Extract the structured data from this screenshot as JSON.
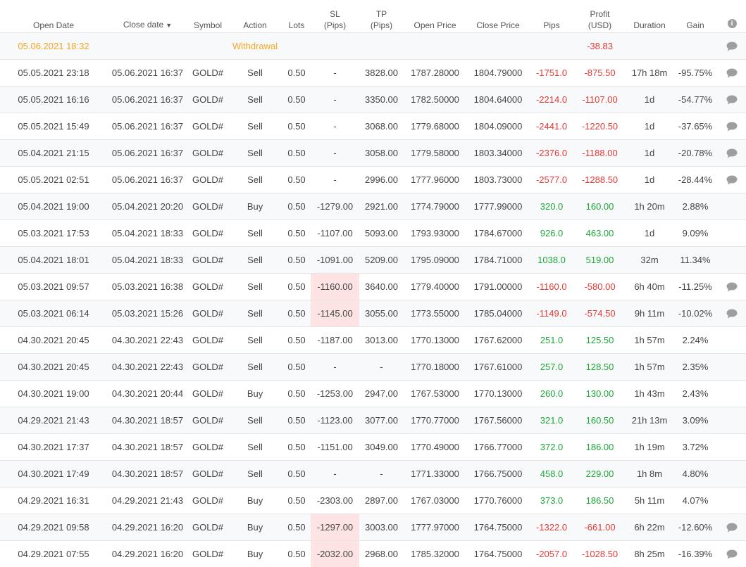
{
  "header": {
    "open_date": "Open Date",
    "close_date": "Close date",
    "sort_indicator": "▼",
    "symbol": "Symbol",
    "action": "Action",
    "lots": "Lots",
    "sl_1": "SL",
    "sl_2": "(Pips)",
    "tp_1": "TP",
    "tp_2": "(Pips)",
    "open_price": "Open Price",
    "close_price": "Close Price",
    "pips": "Pips",
    "profit_1": "Profit",
    "profit_2": "(USD)",
    "duration": "Duration",
    "gain": "Gain",
    "info_glyph": "i"
  },
  "colors": {
    "negative": "#e53935",
    "positive": "#1fa63a",
    "withdrawal": "#f5a623",
    "sl_highlight": "#fde3e3"
  },
  "withdrawal": {
    "open_date": "05.06.2021 18:32",
    "action": "Withdrawal",
    "profit": "-38.83",
    "comment_icon": "chat-bubble-icon"
  },
  "trades": [
    {
      "open": "05.05.2021 23:18",
      "close": "05.06.2021 16:37",
      "symbol": "GOLD#",
      "action": "Sell",
      "lots": "0.50",
      "sl": "-",
      "sl_hi": false,
      "tp": "3828.00",
      "open_price": "1787.28000",
      "close_price": "1804.79000",
      "pips": "-1751.0",
      "profit": "-875.50",
      "duration": "17h 18m",
      "gain": "-95.75%",
      "comment": true
    },
    {
      "open": "05.05.2021 16:16",
      "close": "05.06.2021 16:37",
      "symbol": "GOLD#",
      "action": "Sell",
      "lots": "0.50",
      "sl": "-",
      "sl_hi": false,
      "tp": "3350.00",
      "open_price": "1782.50000",
      "close_price": "1804.64000",
      "pips": "-2214.0",
      "profit": "-1107.00",
      "duration": "1d",
      "gain": "-54.77%",
      "comment": true
    },
    {
      "open": "05.05.2021 15:49",
      "close": "05.06.2021 16:37",
      "symbol": "GOLD#",
      "action": "Sell",
      "lots": "0.50",
      "sl": "-",
      "sl_hi": false,
      "tp": "3068.00",
      "open_price": "1779.68000",
      "close_price": "1804.09000",
      "pips": "-2441.0",
      "profit": "-1220.50",
      "duration": "1d",
      "gain": "-37.65%",
      "comment": true
    },
    {
      "open": "05.04.2021 21:15",
      "close": "05.06.2021 16:37",
      "symbol": "GOLD#",
      "action": "Sell",
      "lots": "0.50",
      "sl": "-",
      "sl_hi": false,
      "tp": "3058.00",
      "open_price": "1779.58000",
      "close_price": "1803.34000",
      "pips": "-2376.0",
      "profit": "-1188.00",
      "duration": "1d",
      "gain": "-20.78%",
      "comment": true
    },
    {
      "open": "05.05.2021 02:51",
      "close": "05.06.2021 16:37",
      "symbol": "GOLD#",
      "action": "Sell",
      "lots": "0.50",
      "sl": "-",
      "sl_hi": false,
      "tp": "2996.00",
      "open_price": "1777.96000",
      "close_price": "1803.73000",
      "pips": "-2577.0",
      "profit": "-1288.50",
      "duration": "1d",
      "gain": "-28.44%",
      "comment": true
    },
    {
      "open": "05.04.2021 19:00",
      "close": "05.04.2021 20:20",
      "symbol": "GOLD#",
      "action": "Buy",
      "lots": "0.50",
      "sl": "-1279.00",
      "sl_hi": false,
      "tp": "2921.00",
      "open_price": "1774.79000",
      "close_price": "1777.99000",
      "pips": "320.0",
      "profit": "160.00",
      "duration": "1h 20m",
      "gain": "2.88%",
      "comment": false
    },
    {
      "open": "05.03.2021 17:53",
      "close": "05.04.2021 18:33",
      "symbol": "GOLD#",
      "action": "Sell",
      "lots": "0.50",
      "sl": "-1107.00",
      "sl_hi": false,
      "tp": "5093.00",
      "open_price": "1793.93000",
      "close_price": "1784.67000",
      "pips": "926.0",
      "profit": "463.00",
      "duration": "1d",
      "gain": "9.09%",
      "comment": false
    },
    {
      "open": "05.04.2021 18:01",
      "close": "05.04.2021 18:33",
      "symbol": "GOLD#",
      "action": "Sell",
      "lots": "0.50",
      "sl": "-1091.00",
      "sl_hi": false,
      "tp": "5209.00",
      "open_price": "1795.09000",
      "close_price": "1784.71000",
      "pips": "1038.0",
      "profit": "519.00",
      "duration": "32m",
      "gain": "11.34%",
      "comment": false
    },
    {
      "open": "05.03.2021 09:57",
      "close": "05.03.2021 16:38",
      "symbol": "GOLD#",
      "action": "Sell",
      "lots": "0.50",
      "sl": "-1160.00",
      "sl_hi": true,
      "tp": "3640.00",
      "open_price": "1779.40000",
      "close_price": "1791.00000",
      "pips": "-1160.0",
      "profit": "-580.00",
      "duration": "6h 40m",
      "gain": "-11.25%",
      "comment": true
    },
    {
      "open": "05.03.2021 06:14",
      "close": "05.03.2021 15:26",
      "symbol": "GOLD#",
      "action": "Sell",
      "lots": "0.50",
      "sl": "-1145.00",
      "sl_hi": true,
      "tp": "3055.00",
      "open_price": "1773.55000",
      "close_price": "1785.04000",
      "pips": "-1149.0",
      "profit": "-574.50",
      "duration": "9h 11m",
      "gain": "-10.02%",
      "comment": true
    },
    {
      "open": "04.30.2021 20:45",
      "close": "04.30.2021 22:43",
      "symbol": "GOLD#",
      "action": "Sell",
      "lots": "0.50",
      "sl": "-1187.00",
      "sl_hi": false,
      "tp": "3013.00",
      "open_price": "1770.13000",
      "close_price": "1767.62000",
      "pips": "251.0",
      "profit": "125.50",
      "duration": "1h 57m",
      "gain": "2.24%",
      "comment": false
    },
    {
      "open": "04.30.2021 20:45",
      "close": "04.30.2021 22:43",
      "symbol": "GOLD#",
      "action": "Sell",
      "lots": "0.50",
      "sl": "-",
      "sl_hi": false,
      "tp": "-",
      "open_price": "1770.18000",
      "close_price": "1767.61000",
      "pips": "257.0",
      "profit": "128.50",
      "duration": "1h 57m",
      "gain": "2.35%",
      "comment": false
    },
    {
      "open": "04.30.2021 19:00",
      "close": "04.30.2021 20:44",
      "symbol": "GOLD#",
      "action": "Buy",
      "lots": "0.50",
      "sl": "-1253.00",
      "sl_hi": false,
      "tp": "2947.00",
      "open_price": "1767.53000",
      "close_price": "1770.13000",
      "pips": "260.0",
      "profit": "130.00",
      "duration": "1h 43m",
      "gain": "2.43%",
      "comment": false
    },
    {
      "open": "04.29.2021 21:43",
      "close": "04.30.2021 18:57",
      "symbol": "GOLD#",
      "action": "Sell",
      "lots": "0.50",
      "sl": "-1123.00",
      "sl_hi": false,
      "tp": "3077.00",
      "open_price": "1770.77000",
      "close_price": "1767.56000",
      "pips": "321.0",
      "profit": "160.50",
      "duration": "21h 13m",
      "gain": "3.09%",
      "comment": false
    },
    {
      "open": "04.30.2021 17:37",
      "close": "04.30.2021 18:57",
      "symbol": "GOLD#",
      "action": "Sell",
      "lots": "0.50",
      "sl": "-1151.00",
      "sl_hi": false,
      "tp": "3049.00",
      "open_price": "1770.49000",
      "close_price": "1766.77000",
      "pips": "372.0",
      "profit": "186.00",
      "duration": "1h 19m",
      "gain": "3.72%",
      "comment": false
    },
    {
      "open": "04.30.2021 17:49",
      "close": "04.30.2021 18:57",
      "symbol": "GOLD#",
      "action": "Sell",
      "lots": "0.50",
      "sl": "-",
      "sl_hi": false,
      "tp": "-",
      "open_price": "1771.33000",
      "close_price": "1766.75000",
      "pips": "458.0",
      "profit": "229.00",
      "duration": "1h 8m",
      "gain": "4.80%",
      "comment": false
    },
    {
      "open": "04.29.2021 16:31",
      "close": "04.29.2021 21:43",
      "symbol": "GOLD#",
      "action": "Buy",
      "lots": "0.50",
      "sl": "-2303.00",
      "sl_hi": false,
      "tp": "2897.00",
      "open_price": "1767.03000",
      "close_price": "1770.76000",
      "pips": "373.0",
      "profit": "186.50",
      "duration": "5h 11m",
      "gain": "4.07%",
      "comment": false
    },
    {
      "open": "04.29.2021 09:58",
      "close": "04.29.2021 16:20",
      "symbol": "GOLD#",
      "action": "Buy",
      "lots": "0.50",
      "sl": "-1297.00",
      "sl_hi": true,
      "tp": "3003.00",
      "open_price": "1777.97000",
      "close_price": "1764.75000",
      "pips": "-1322.0",
      "profit": "-661.00",
      "duration": "6h 22m",
      "gain": "-12.60%",
      "comment": true
    },
    {
      "open": "04.29.2021 07:55",
      "close": "04.29.2021 16:20",
      "symbol": "GOLD#",
      "action": "Buy",
      "lots": "0.50",
      "sl": "-2032.00",
      "sl_hi": true,
      "tp": "2968.00",
      "open_price": "1785.32000",
      "close_price": "1764.75000",
      "pips": "-2057.0",
      "profit": "-1028.50",
      "duration": "8h 25m",
      "gain": "-16.39%",
      "comment": true
    }
  ]
}
